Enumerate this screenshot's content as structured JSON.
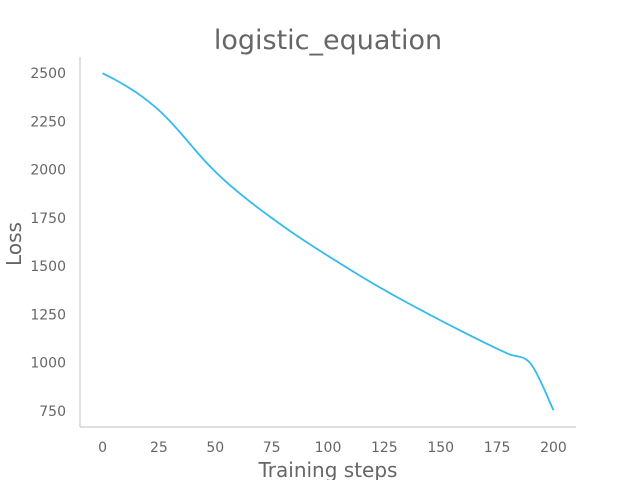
{
  "chart_data": {
    "type": "line",
    "title": "logistic_equation",
    "xlabel": "Training steps",
    "ylabel": "Loss",
    "xlim": [
      -10,
      210
    ],
    "ylim": [
      666,
      2584
    ],
    "xticks": [
      0,
      25,
      50,
      75,
      100,
      125,
      150,
      175,
      200
    ],
    "yticks": [
      750,
      1000,
      1250,
      1500,
      1750,
      2000,
      2250,
      2500
    ],
    "grid": false,
    "legend": "none",
    "line_color": "#33bbee",
    "series": [
      {
        "x": [
          0,
          5,
          10,
          15,
          20,
          25,
          30,
          35,
          40,
          45,
          50,
          55,
          60,
          65,
          70,
          75,
          80,
          85,
          90,
          95,
          100,
          110,
          120,
          130,
          140,
          150,
          160,
          170,
          180,
          190,
          200
        ],
        "values": [
          2500,
          2470,
          2437,
          2400,
          2357,
          2308,
          2250,
          2185,
          2117,
          2050,
          1990,
          1935,
          1885,
          1838,
          1793,
          1750,
          1708,
          1667,
          1628,
          1590,
          1553,
          1480,
          1410,
          1343,
          1280,
          1218,
          1158,
          1100,
          1045,
          993,
          753
        ]
      }
    ]
  }
}
